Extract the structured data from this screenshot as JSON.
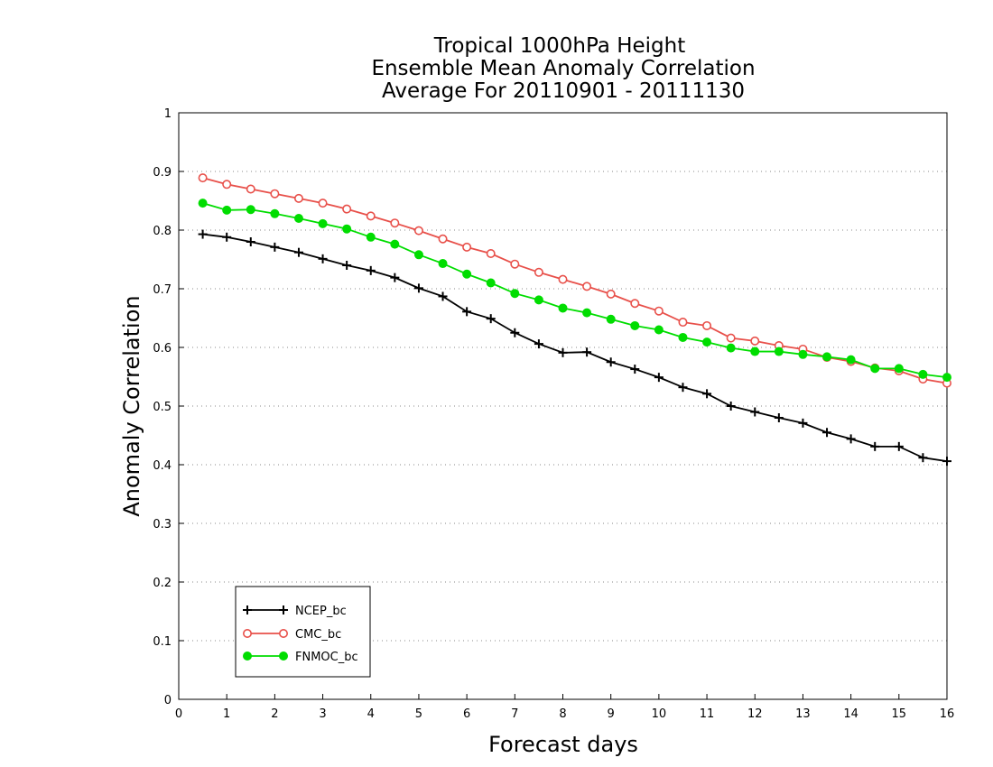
{
  "chart_data": {
    "type": "line",
    "title": [
      "Tropical 1000hPa Height",
      "Ensemble Mean Anomaly Correlation",
      "Average For 20110901 - 20111130"
    ],
    "xlabel": "Forecast days",
    "ylabel": "Anomaly Correlation",
    "xlim": [
      0,
      16
    ],
    "ylim": [
      0,
      1
    ],
    "xticks": [
      "0",
      "1",
      "2",
      "3",
      "4",
      "5",
      "6",
      "7",
      "8",
      "9",
      "10",
      "11",
      "12",
      "13",
      "14",
      "15",
      "16"
    ],
    "yticks": [
      "0",
      "0.1",
      "0.2",
      "0.3",
      "0.4",
      "0.5",
      "0.6",
      "0.7",
      "0.8",
      "0.9",
      "1"
    ],
    "grid": "dotted horizontal",
    "legend_position": "bottom-left",
    "x": [
      0.5,
      1,
      1.5,
      2,
      2.5,
      3,
      3.5,
      4,
      4.5,
      5,
      5.5,
      6,
      6.5,
      7,
      7.5,
      8,
      8.5,
      9,
      9.5,
      10,
      10.5,
      11,
      11.5,
      12,
      12.5,
      13,
      13.5,
      14,
      14.5,
      15,
      15.5,
      16
    ],
    "series": [
      {
        "name": "NCEP_bc",
        "color": "#000000",
        "marker": "plus",
        "values": [
          0.793,
          0.788,
          0.78,
          0.771,
          0.762,
          0.751,
          0.74,
          0.731,
          0.719,
          0.701,
          0.687,
          0.661,
          0.649,
          0.625,
          0.606,
          0.591,
          0.592,
          0.575,
          0.563,
          0.549,
          0.532,
          0.521,
          0.5,
          0.49,
          0.48,
          0.471,
          0.455,
          0.444,
          0.431,
          0.431,
          0.412,
          0.406
        ]
      },
      {
        "name": "CMC_bc",
        "color": "#e8504a",
        "marker": "open-circle",
        "values": [
          0.889,
          0.878,
          0.87,
          0.862,
          0.854,
          0.846,
          0.836,
          0.824,
          0.812,
          0.799,
          0.785,
          0.771,
          0.76,
          0.742,
          0.728,
          0.716,
          0.704,
          0.691,
          0.675,
          0.662,
          0.643,
          0.637,
          0.616,
          0.611,
          0.603,
          0.597,
          0.583,
          0.576,
          0.565,
          0.56,
          0.546,
          0.539
        ]
      },
      {
        "name": "FNMOC_bc",
        "color": "#00dd00",
        "marker": "filled-circle",
        "values": [
          0.846,
          0.834,
          0.835,
          0.828,
          0.82,
          0.811,
          0.802,
          0.788,
          0.776,
          0.758,
          0.743,
          0.725,
          0.71,
          0.692,
          0.681,
          0.667,
          0.659,
          0.648,
          0.637,
          0.63,
          0.617,
          0.609,
          0.599,
          0.593,
          0.593,
          0.588,
          0.584,
          0.579,
          0.564,
          0.564,
          0.554,
          0.549
        ]
      }
    ]
  }
}
